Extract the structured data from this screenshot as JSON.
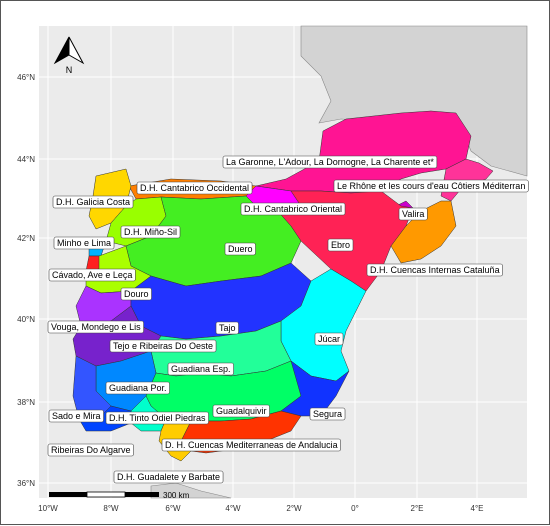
{
  "compass": {
    "letter": "N"
  },
  "scalebar": {
    "label": "300 km"
  },
  "axes": {
    "y_ticks": [
      "46°N",
      "44°N",
      "42°N",
      "40°N",
      "38°N",
      "36°N"
    ],
    "x_ticks": [
      "10°W",
      "8°W",
      "6°W",
      "4°W",
      "2°W",
      "0°",
      "2°E",
      "4°E"
    ]
  },
  "regions": [
    {
      "name": "La Garonne, L'Adour, La Dornogne, La Charente et*",
      "color": "#ff1493"
    },
    {
      "name": "Le Rhône et les cours d'eau Côtiers Méditerran",
      "color": "#ff3399"
    },
    {
      "name": "D.H. Cantabrico Occidental",
      "color": "#ff7f00"
    },
    {
      "name": "D.H. Galicia Costa",
      "color": "#ffd700"
    },
    {
      "name": "D.H. Cantabrico Oriental",
      "color": "#ff00ff"
    },
    {
      "name": "Valira",
      "color": "#cc00cc"
    },
    {
      "name": "D.H. Miño-Sil",
      "color": "#99ff00"
    },
    {
      "name": "Minho e Lima",
      "color": "#00b3ff"
    },
    {
      "name": "Duero",
      "color": "#44ee22"
    },
    {
      "name": "Ebro",
      "color": "#ff2255"
    },
    {
      "name": "D.H. Cuencas Internas Cataluña",
      "color": "#ff9900"
    },
    {
      "name": "Cávado, Ave e Leça",
      "color": "#ff2020"
    },
    {
      "name": "Douro",
      "color": "#aaff00"
    },
    {
      "name": "Vouga, Mondego e Lis",
      "color": "#aa33ff"
    },
    {
      "name": "Tajo",
      "color": "#2233ff"
    },
    {
      "name": "Tejo e Ribeiras Do Oeste",
      "color": "#7722cc"
    },
    {
      "name": "Júcar",
      "color": "#00ffff"
    },
    {
      "name": "Guadiana Esp.",
      "color": "#22ff99"
    },
    {
      "name": "Guadiana Por.",
      "color": "#0088ff"
    },
    {
      "name": "Guadalquivir",
      "color": "#00ff66"
    },
    {
      "name": "Segura",
      "color": "#1133ff"
    },
    {
      "name": "Sado e Mira",
      "color": "#3355ff"
    },
    {
      "name": "D.H. Tinto Odiel Piedras",
      "color": "#00ffcc"
    },
    {
      "name": "D. H. Cuencas Mediterraneas de Andalucia",
      "color": "#ff3300"
    },
    {
      "name": "Ribeiras Do Algarve",
      "color": "#0044ff"
    },
    {
      "name": "D.H. Guadalete y Barbate",
      "color": "#ffcc00"
    }
  ]
}
